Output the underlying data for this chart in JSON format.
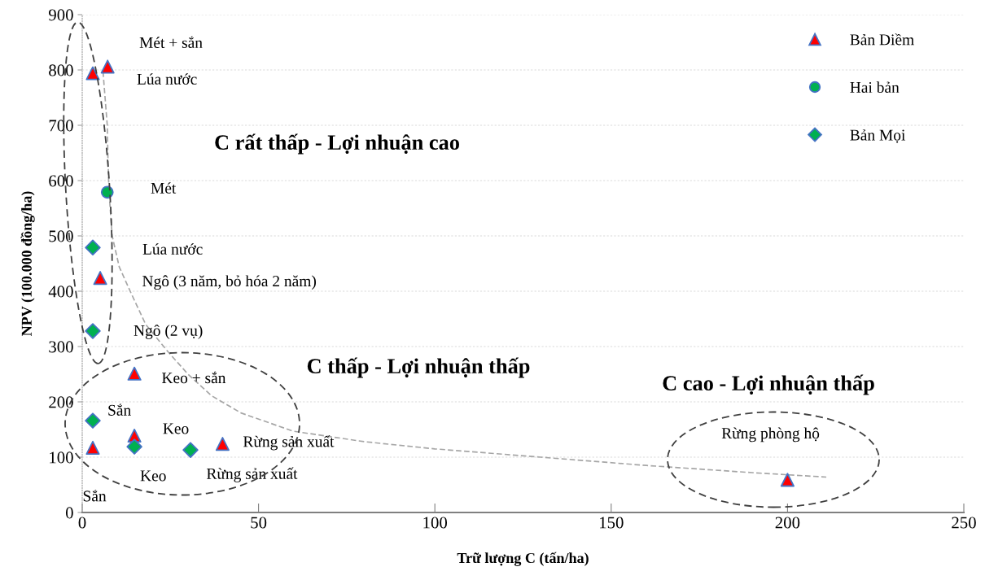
{
  "chart_data": {
    "type": "scatter",
    "xlabel": "Trữ lượng C (tấn/ha)",
    "ylabel": "NPV (100.000 đồng/ha)",
    "xlim": [
      0,
      250
    ],
    "xticks": [
      0,
      50,
      100,
      150,
      200,
      250
    ],
    "ylim": [
      0,
      900
    ],
    "yticks": [
      0,
      100,
      200,
      300,
      400,
      500,
      600,
      700,
      800,
      900
    ],
    "grid": "y",
    "legend": "top right",
    "series": [
      {
        "name": "Bản Diềm",
        "color": "#ff0000",
        "marker": "triangle",
        "x": [
          3.0,
          7.2,
          5.1,
          14.8,
          14.8,
          3.0,
          39.8,
          200
        ],
        "values": [
          794,
          806,
          424,
          251,
          139,
          117,
          124,
          59
        ]
      },
      {
        "name": "Hai bản",
        "color": "#00b050",
        "marker": "circle",
        "x": [
          7.1
        ],
        "values": [
          579
        ]
      },
      {
        "name": "Bản Mọi",
        "color": "#00b050",
        "marker": "diamond",
        "x": [
          3.0,
          3.0,
          3.0,
          14.8,
          30.7
        ],
        "values": [
          479,
          328,
          166,
          119,
          113
        ]
      },
      {
        "type": "line",
        "color": "#a6a6a6",
        "marker": "none",
        "line_style": "dashed",
        "x": [
          5.9,
          7.1,
          7.3,
          7.6,
          8.5,
          10.5,
          13.6,
          18,
          24.4,
          30,
          36.7,
          45,
          59.8,
          80,
          100,
          130,
          160,
          190,
          211
        ],
        "values": [
          797,
          700,
          640,
          579,
          500,
          444,
          400,
          340,
          290,
          250,
          211,
          180,
          147,
          128,
          115,
          100,
          85,
          72,
          64
        ]
      }
    ],
    "annotations": [
      {
        "text": "Mét + sắn",
        "x": 7.2,
        "y": 806
      },
      "Lúa nước",
      "Mét",
      "Lúa nước",
      {
        "text": "Ngô (3 năm, bỏ hóa 2 năm)",
        "x": 5.1,
        "y": 424
      },
      "Ngô (2 vụ)",
      {
        "text": "Keo + sắn",
        "x": 14.8,
        "y": 251
      },
      {
        "text": "Sắn",
        "x": 3.0,
        "y": 166
      },
      {
        "text": "Keo",
        "x": 14.8,
        "y": 139
      },
      {
        "text": "Sắn",
        "x": 3.0,
        "y": 117
      },
      {
        "text": "Keo",
        "x": 14.8,
        "y": 119
      },
      {
        "text": "Rừng sản xuất",
        "x": 30.7,
        "y": 113
      },
      {
        "text": "Rừng sản xuất",
        "x": 39.8,
        "y": 124
      },
      {
        "text": "Rừng phòng hộ",
        "x": 200,
        "y": 59
      },
      "C rất thấp - Lợi nhuận cao",
      "C thấp - Lợi nhuận thấp",
      "C cao - Lợi nhuận thấp"
    ]
  }
}
